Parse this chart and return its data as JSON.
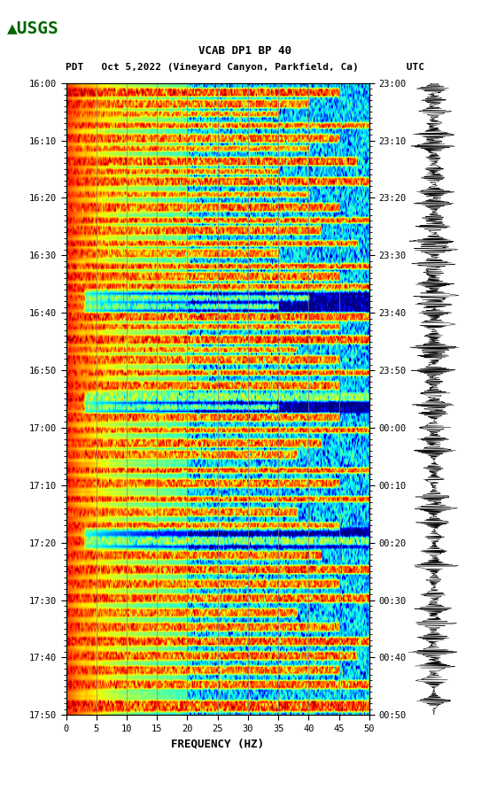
{
  "title_line1": "VCAB DP1 BP 40",
  "title_line2": "PDT   Oct 5,2022 (Vineyard Canyon, Parkfield, Ca)        UTC",
  "left_yticks": [
    "16:00",
    "16:10",
    "16:20",
    "16:30",
    "16:40",
    "16:50",
    "17:00",
    "17:10",
    "17:20",
    "17:30",
    "17:40",
    "17:50"
  ],
  "right_yticks": [
    "23:00",
    "23:10",
    "23:20",
    "23:30",
    "23:40",
    "23:50",
    "00:00",
    "00:10",
    "00:20",
    "00:30",
    "00:40",
    "00:50"
  ],
  "xticks": [
    0,
    5,
    10,
    15,
    20,
    25,
    30,
    35,
    40,
    45,
    50
  ],
  "xlabel": "FREQUENCY (HZ)",
  "freq_min": 0,
  "freq_max": 50,
  "background_color": "#ffffff",
  "colormap": "jet",
  "fig_width": 5.52,
  "fig_height": 8.92,
  "dpi": 100
}
